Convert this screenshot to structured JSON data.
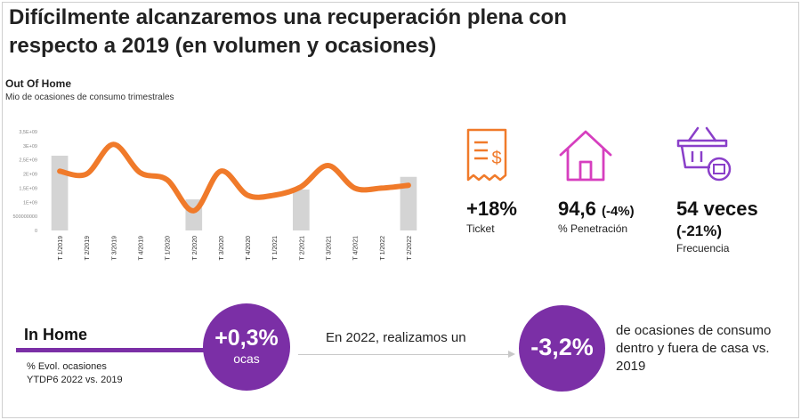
{
  "title": "Difícilmente alcanzaremos una recuperación plena con respecto a 2019 (en volumen y ocasiones)",
  "section": {
    "title": "Out Of Home",
    "subtitle": "Mio de ocasiones de consumo trimestrales"
  },
  "chart_data": {
    "type": "line",
    "categories": [
      "T 1/2019",
      "T 2/2019",
      "T 3/2019",
      "T 4/2019",
      "T 1/2020",
      "T 2/2020",
      "T 3/2020",
      "T 4/2020",
      "T 1/2021",
      "T 2/2021",
      "T 3/2021",
      "T 4/2021",
      "T 1/2022",
      "T 2/2022"
    ],
    "values": [
      2100000000,
      2000000000,
      3050000000,
      2050000000,
      1800000000,
      700000000,
      2100000000,
      1250000000,
      1250000000,
      1550000000,
      2300000000,
      1500000000,
      1500000000,
      1600000000
    ],
    "highlight_bars": {
      "T 1/2019": 2650000000,
      "T 2/2020": 1100000000,
      "T 2/2021": 1450000000,
      "T 2/2022": 1900000000
    },
    "yticks": [
      0,
      500000000,
      1000000000,
      1500000000,
      2000000000,
      2500000000,
      3000000000,
      3500000000
    ],
    "ytick_labels": [
      "0",
      "500000000",
      "1E+09",
      "1,5E+09",
      "2E+09",
      "2,5E+09",
      "3E+09",
      "3,5E+09"
    ],
    "ylim": [
      0,
      3500000000
    ],
    "line_color": "#f07a2a",
    "bar_color": "#d4d4d4",
    "grid": false,
    "legend": "none"
  },
  "kpis": [
    {
      "value": "+18%",
      "extra": "",
      "label": "Ticket",
      "icon": "receipt-dollar-icon"
    },
    {
      "value": "94,6",
      "extra": "(-4%)",
      "label": "% Penetración",
      "icon": "house-icon"
    },
    {
      "value": "54 veces",
      "extra": "(-21%)",
      "label": "Frecuencia",
      "icon": "shopping-basket-icon"
    }
  ],
  "colors": {
    "accent": "#7b2fa6",
    "icon_orange": "#f07a2a",
    "icon_magenta": "#d63fbf",
    "icon_purple": "#8a3fc9"
  },
  "in_home": {
    "label": "In Home",
    "sub_line1": "% Evol. ocasiones",
    "sub_line2": "YTDP6 2022 vs. 2019",
    "circle_value": "+0,3%",
    "circle_unit": "ocas"
  },
  "arrow_text": "En 2022, realizamos un",
  "total": {
    "circle_value": "-3,2%",
    "text": "de ocasiones de consumo dentro y fuera de casa vs. 2019"
  }
}
